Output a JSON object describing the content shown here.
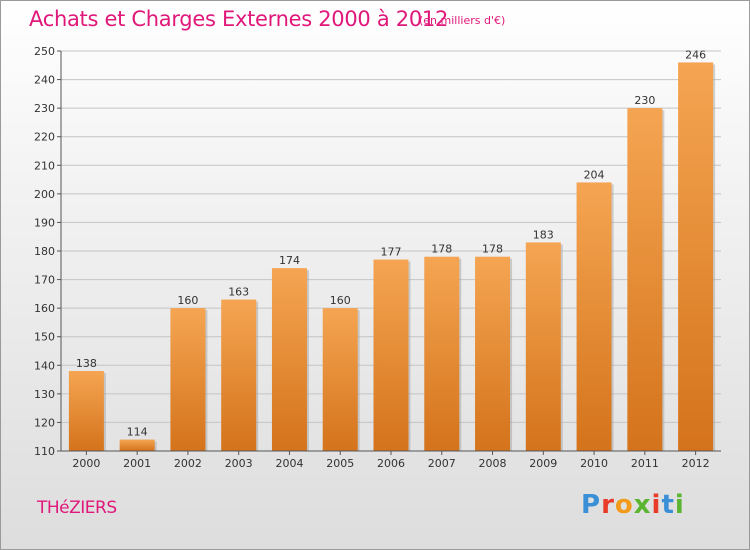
{
  "header": {
    "title": "Achats et Charges Externes 2000 à 2012",
    "subtitle": "(en milliers d'€)"
  },
  "footer": {
    "commune": "THéZIERS",
    "brand": "Proxiti"
  },
  "colors": {
    "accent": "#e0187a",
    "bar_light": "#f5a552",
    "bar_dark": "#d4731b",
    "logo_letters": [
      "#3a8fd6",
      "#e83b2a",
      "#f29a1a",
      "#5cb531",
      "#e83b2a",
      "#3a8fd6",
      "#5cb531"
    ]
  },
  "chart_data": {
    "type": "bar",
    "categories": [
      "2000",
      "2001",
      "2002",
      "2003",
      "2004",
      "2005",
      "2006",
      "2007",
      "2008",
      "2009",
      "2010",
      "2011",
      "2012"
    ],
    "values": [
      138,
      114,
      160,
      163,
      174,
      160,
      177,
      178,
      178,
      183,
      204,
      230,
      246
    ],
    "ylim": [
      110,
      250
    ],
    "yticks": [
      110,
      120,
      130,
      140,
      150,
      160,
      170,
      180,
      190,
      200,
      210,
      220,
      230,
      240,
      250
    ],
    "grid": true
  }
}
